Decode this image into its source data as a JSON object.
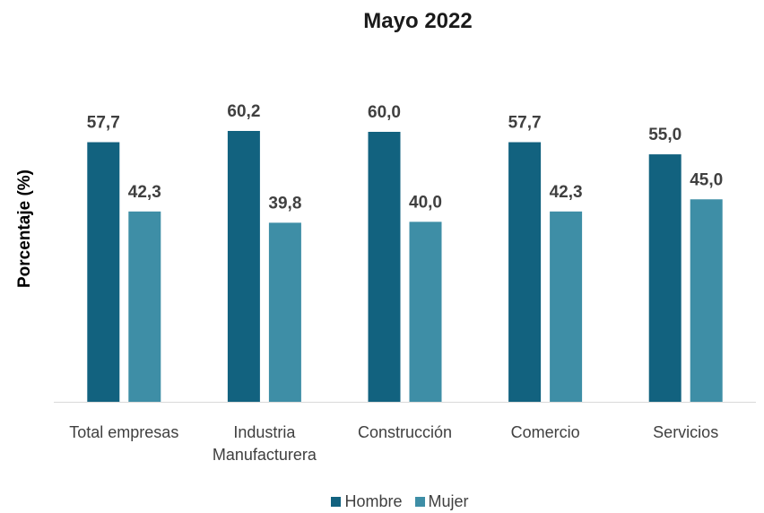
{
  "chart_data": {
    "type": "bar",
    "title": "Mayo 2022",
    "xlabel": "",
    "ylabel": "Porcentaje (%)",
    "categories": [
      [
        "Total empresas"
      ],
      [
        "Industria",
        "Manufacturera"
      ],
      [
        "Construcción"
      ],
      [
        "Comercio"
      ],
      [
        "Servicios"
      ]
    ],
    "series": [
      {
        "name": "Hombre",
        "color": "#12627F",
        "values": [
          57.7,
          60.2,
          60.0,
          57.7,
          55.0
        ],
        "labels": [
          "57,7",
          "60,2",
          "60,0",
          "57,7",
          "55,0"
        ]
      },
      {
        "name": "Mujer",
        "color": "#3E8EA6",
        "values": [
          42.3,
          39.8,
          40.0,
          42.3,
          45.0
        ],
        "labels": [
          "42,3",
          "39,8",
          "40,0",
          "42,3",
          "45,0"
        ]
      }
    ],
    "ylim": [
      0,
      60.2
    ],
    "grid": false,
    "legend_position": "bottom"
  }
}
